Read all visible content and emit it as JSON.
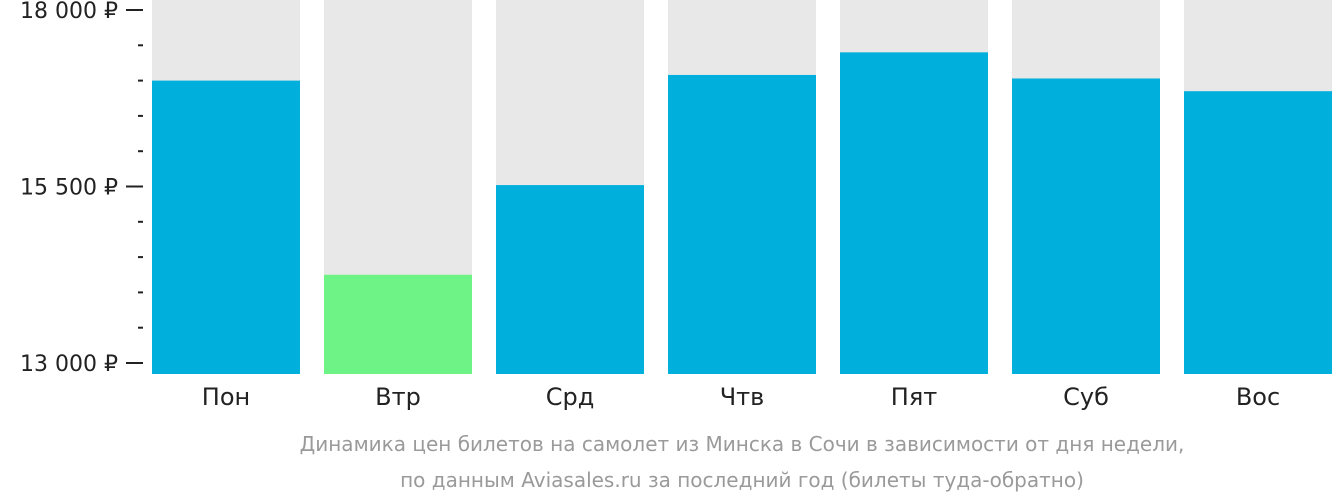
{
  "chart_data": {
    "type": "bar",
    "title": "",
    "xlabel": "",
    "ylabel": "",
    "categories": [
      "Пон",
      "Втр",
      "Срд",
      "Чтв",
      "Пят",
      "Суб",
      "Вос"
    ],
    "values": [
      17000,
      14250,
      15520,
      17080,
      17400,
      17030,
      16850
    ],
    "ylim": [
      13000,
      18000
    ],
    "yticks": [
      {
        "value": 13000,
        "label": "13 000 ₽"
      },
      {
        "value": 15500,
        "label": "15 500 ₽"
      },
      {
        "value": 18000,
        "label": "18 000 ₽"
      }
    ],
    "minor_tick_step": 500,
    "highlight_index": 1,
    "colors": {
      "bar": "#00afdc",
      "highlight": "#6ef486",
      "background_column": "#e8e8e8",
      "axis": "#222222"
    },
    "caption": [
      "Динамика цен билетов на самолет из Минска в Сочи в зависимости от дня недели,",
      "по данным Aviasales.ru за последний год (билеты туда-обратно)"
    ]
  }
}
